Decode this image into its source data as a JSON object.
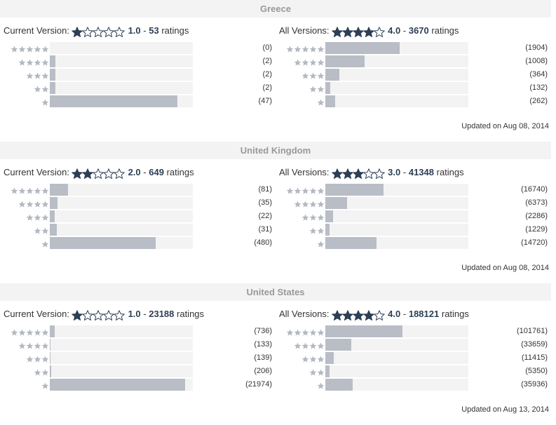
{
  "countries": [
    {
      "name": "Greece",
      "current": {
        "label": "Current Version:",
        "stars": 1,
        "rating": "1.0",
        "sep": "-",
        "count": "53",
        "unit": "ratings",
        "rows": [
          {
            "stars": 5,
            "count": "(0)",
            "fill": 0.0
          },
          {
            "stars": 4,
            "count": "(2)",
            "fill": 0.04
          },
          {
            "stars": 3,
            "count": "(2)",
            "fill": 0.04
          },
          {
            "stars": 2,
            "count": "(2)",
            "fill": 0.04
          },
          {
            "stars": 1,
            "count": "(47)",
            "fill": 0.89
          }
        ]
      },
      "all": {
        "label": "All Versions:",
        "stars": 4,
        "rating": "4.0",
        "sep": "-",
        "count": "3670",
        "unit": "ratings",
        "rows": [
          {
            "stars": 5,
            "count": "(1904)",
            "fill": 0.52
          },
          {
            "stars": 4,
            "count": "(1008)",
            "fill": 0.275
          },
          {
            "stars": 3,
            "count": "(364)",
            "fill": 0.1
          },
          {
            "stars": 2,
            "count": "(132)",
            "fill": 0.036
          },
          {
            "stars": 1,
            "count": "(262)",
            "fill": 0.071
          }
        ]
      },
      "updated": "Updated on Aug 08, 2014"
    },
    {
      "name": "United Kingdom",
      "current": {
        "label": "Current Version:",
        "stars": 2,
        "rating": "2.0",
        "sep": "-",
        "count": "649",
        "unit": "ratings",
        "rows": [
          {
            "stars": 5,
            "count": "(81)",
            "fill": 0.125
          },
          {
            "stars": 4,
            "count": "(35)",
            "fill": 0.054
          },
          {
            "stars": 3,
            "count": "(22)",
            "fill": 0.034
          },
          {
            "stars": 2,
            "count": "(31)",
            "fill": 0.048
          },
          {
            "stars": 1,
            "count": "(480)",
            "fill": 0.74
          }
        ]
      },
      "all": {
        "label": "All Versions:",
        "stars": 3,
        "rating": "3.0",
        "sep": "-",
        "count": "41348",
        "unit": "ratings",
        "rows": [
          {
            "stars": 5,
            "count": "(16740)",
            "fill": 0.405
          },
          {
            "stars": 4,
            "count": "(6373)",
            "fill": 0.154
          },
          {
            "stars": 3,
            "count": "(2286)",
            "fill": 0.055
          },
          {
            "stars": 2,
            "count": "(1229)",
            "fill": 0.03
          },
          {
            "stars": 1,
            "count": "(14720)",
            "fill": 0.356
          }
        ]
      },
      "updated": "Updated on Aug 08, 2014"
    },
    {
      "name": "United States",
      "current": {
        "label": "Current Version:",
        "stars": 1,
        "rating": "1.0",
        "sep": "-",
        "count": "23188",
        "unit": "ratings",
        "rows": [
          {
            "stars": 5,
            "count": "(736)",
            "fill": 0.032
          },
          {
            "stars": 4,
            "count": "(133)",
            "fill": 0.006
          },
          {
            "stars": 3,
            "count": "(139)",
            "fill": 0.006
          },
          {
            "stars": 2,
            "count": "(206)",
            "fill": 0.009
          },
          {
            "stars": 1,
            "count": "(21974)",
            "fill": 0.948
          }
        ]
      },
      "all": {
        "label": "All Versions:",
        "stars": 4,
        "rating": "4.0",
        "sep": "-",
        "count": "188121",
        "unit": "ratings",
        "rows": [
          {
            "stars": 5,
            "count": "(101761)",
            "fill": 0.541
          },
          {
            "stars": 4,
            "count": "(33659)",
            "fill": 0.179
          },
          {
            "stars": 3,
            "count": "(11415)",
            "fill": 0.061
          },
          {
            "stars": 2,
            "count": "(5350)",
            "fill": 0.028
          },
          {
            "stars": 1,
            "count": "(35936)",
            "fill": 0.191
          }
        ]
      },
      "updated": "Updated on Aug 13, 2014"
    }
  ],
  "colors": {
    "header_bg": "#f3f3f3",
    "header_text": "#999999",
    "bar_bg": "#f3f3f3",
    "bar_fill": "#b8bdc6",
    "star_big": "#2d3f55",
    "star_small": "#b3b8c1"
  }
}
